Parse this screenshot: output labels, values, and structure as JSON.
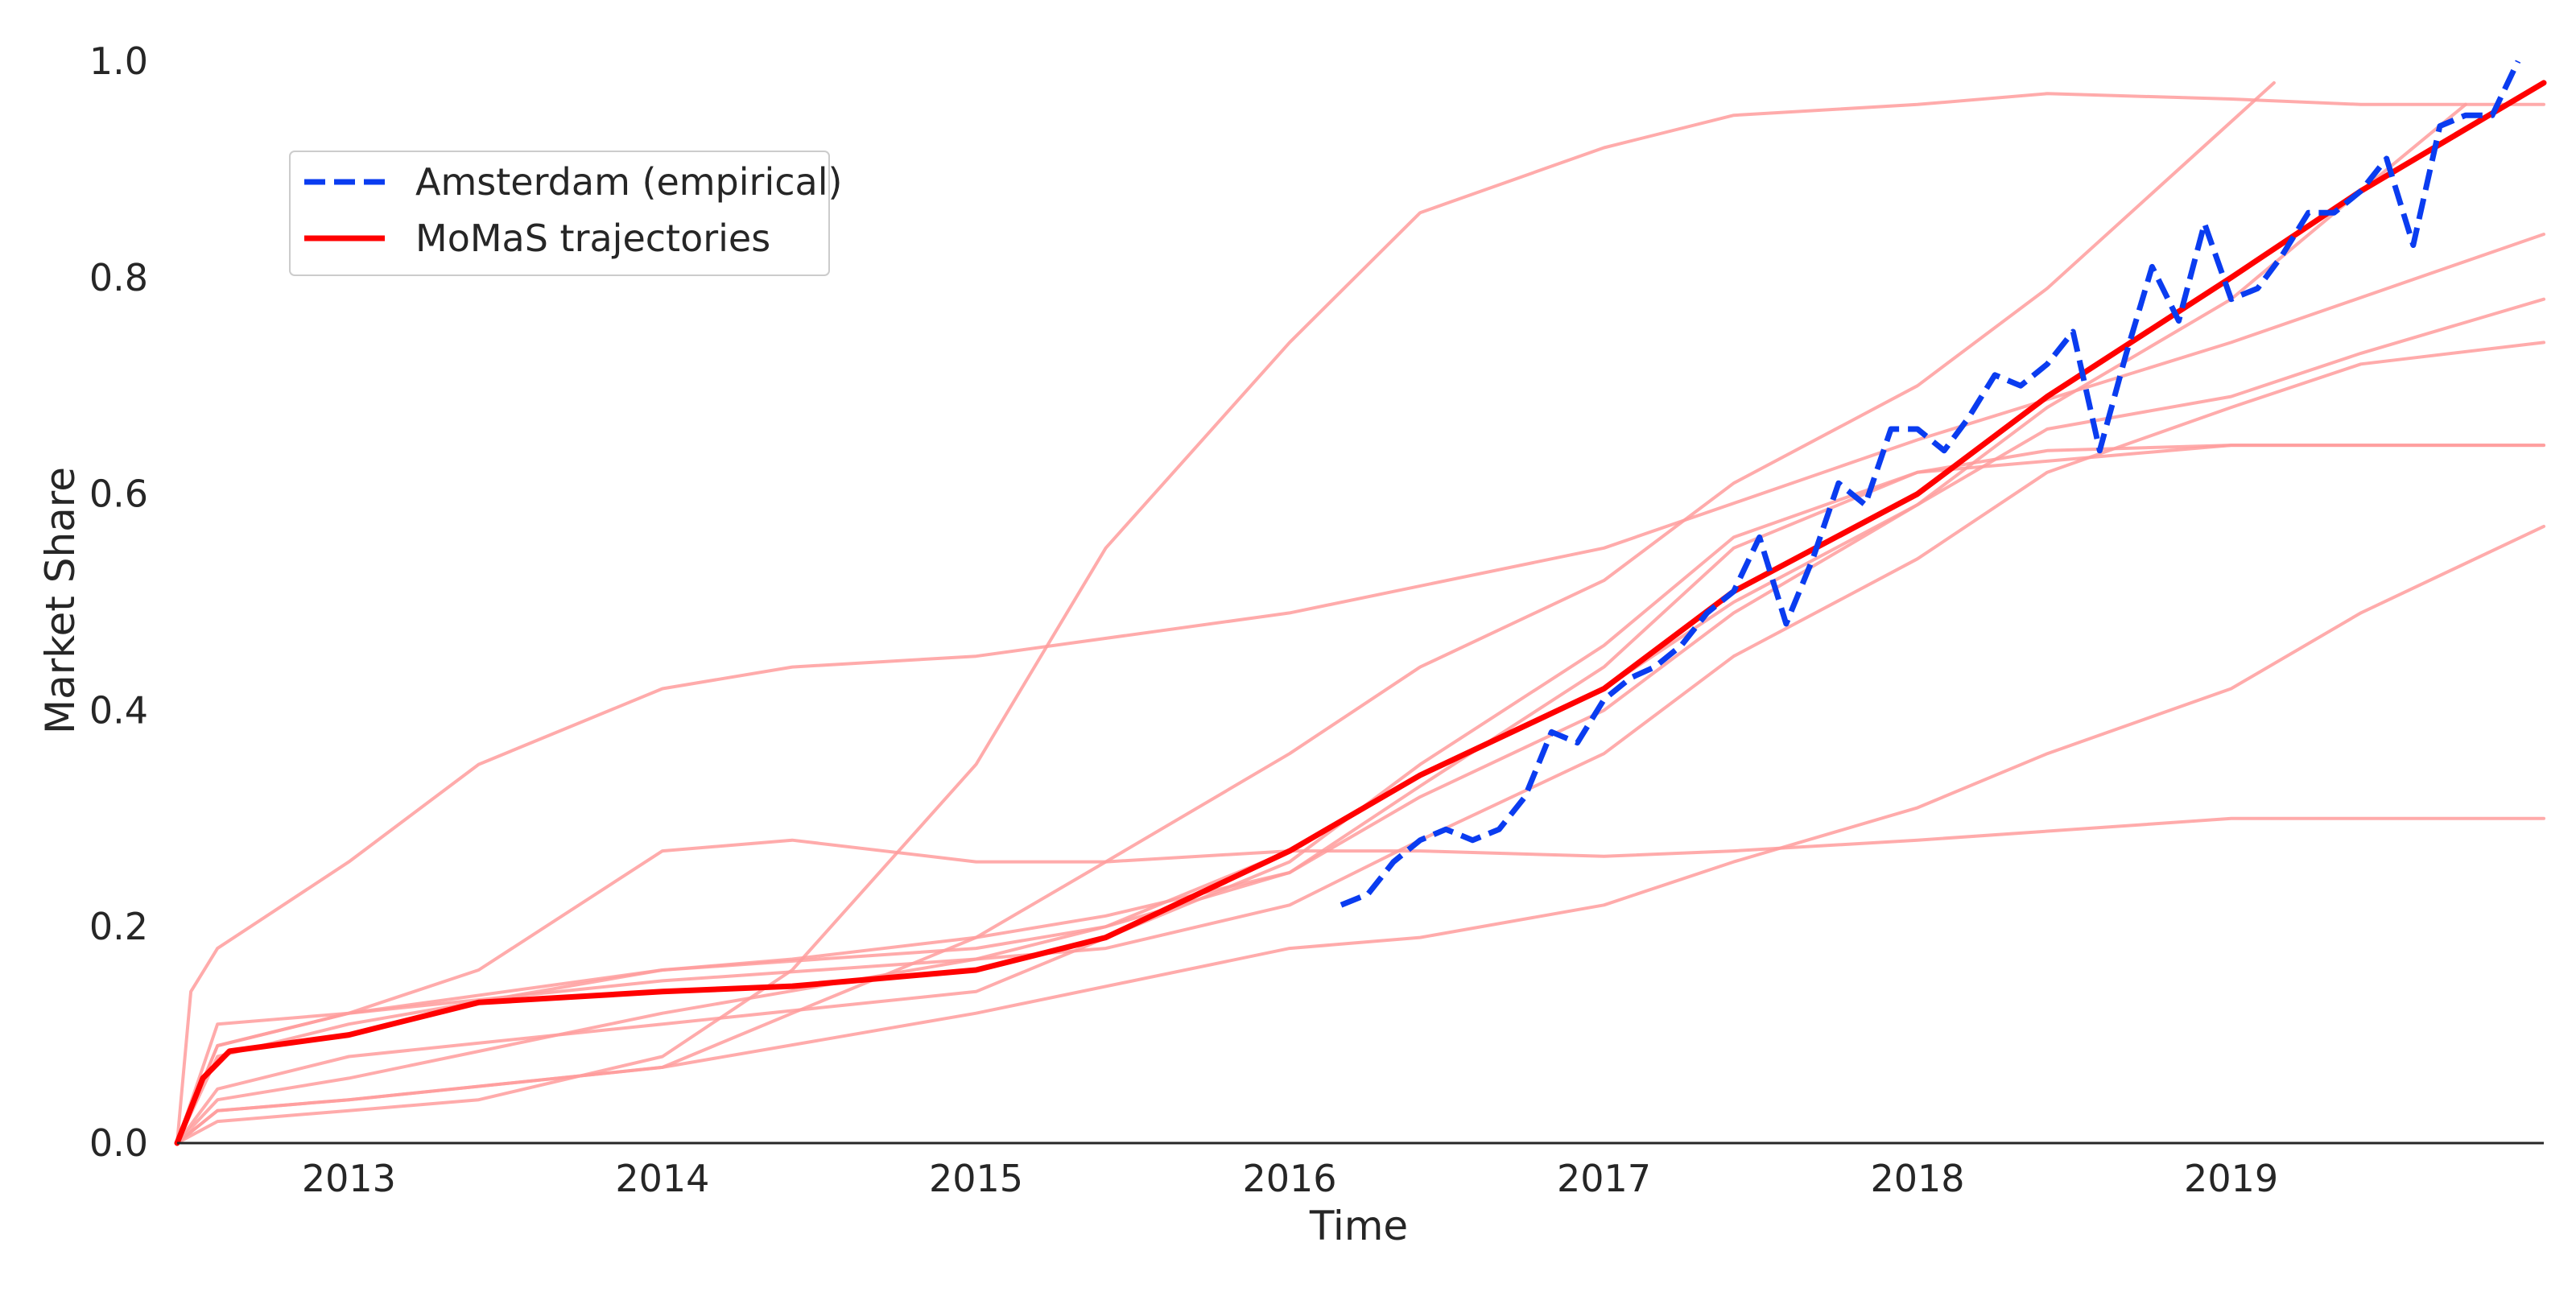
{
  "chart_data": {
    "type": "line",
    "xlabel": "Time",
    "ylabel": "Market Share",
    "xlim": [
      "2012-06-15",
      "2019-12-31"
    ],
    "ylim": [
      0.0,
      1.0
    ],
    "x_ticks": [
      "2013",
      "2014",
      "2015",
      "2016",
      "2017",
      "2018",
      "2019"
    ],
    "y_ticks": [
      "0.0",
      "0.2",
      "0.4",
      "0.6",
      "0.8",
      "1.0"
    ],
    "grid": false,
    "legend_position": "upper-left",
    "legend": [
      {
        "label": "Amsterdam (empirical)",
        "style": "dashed",
        "color": "#0a3cf0"
      },
      {
        "label": "MoMaS trajectories",
        "style": "solid",
        "color": "#ff0000"
      }
    ],
    "colors": {
      "empirical": "#0a3cf0",
      "mean": "#ff0000",
      "trajectory": "#ff9c9c"
    },
    "series": [
      {
        "name": "Amsterdam (empirical)",
        "style": "dashed",
        "x": [
          "2016-03-01",
          "2016-04-01",
          "2016-05-01",
          "2016-06-01",
          "2016-07-01",
          "2016-08-01",
          "2016-09-01",
          "2016-10-01",
          "2016-11-01",
          "2016-12-01",
          "2017-01-01",
          "2017-02-01",
          "2017-03-01",
          "2017-04-01",
          "2017-05-01",
          "2017-06-01",
          "2017-07-01",
          "2017-08-01",
          "2017-09-01",
          "2017-10-01",
          "2017-11-01",
          "2017-12-01",
          "2018-01-01",
          "2018-02-01",
          "2018-03-01",
          "2018-04-01",
          "2018-05-01",
          "2018-06-01",
          "2018-07-01",
          "2018-08-01",
          "2018-09-01",
          "2018-10-01",
          "2018-11-01",
          "2018-12-01",
          "2019-01-01",
          "2019-02-01",
          "2019-03-01",
          "2019-04-01",
          "2019-05-01",
          "2019-06-01",
          "2019-07-01",
          "2019-08-01",
          "2019-09-01",
          "2019-10-01",
          "2019-11-01",
          "2019-12-01"
        ],
        "values": [
          0.22,
          0.23,
          0.26,
          0.28,
          0.29,
          0.28,
          0.29,
          0.32,
          0.38,
          0.37,
          0.41,
          0.43,
          0.44,
          0.46,
          0.49,
          0.51,
          0.56,
          0.48,
          0.54,
          0.61,
          0.59,
          0.66,
          0.66,
          0.64,
          0.67,
          0.71,
          0.7,
          0.72,
          0.75,
          0.64,
          0.73,
          0.81,
          0.76,
          0.85,
          0.78,
          0.79,
          0.82,
          0.86,
          0.86,
          0.88,
          0.91,
          0.83,
          0.94,
          0.95,
          0.95,
          1.0
        ]
      },
      {
        "name": "MoMaS trajectories",
        "style": "solid-mean",
        "x": [
          "2012-06-15",
          "2012-07-15",
          "2012-08-15",
          "2013-01-01",
          "2013-06-01",
          "2014-01-01",
          "2014-06-01",
          "2015-01-01",
          "2015-06-01",
          "2016-01-01",
          "2016-06-01",
          "2017-01-01",
          "2017-06-01",
          "2018-01-01",
          "2018-06-01",
          "2019-01-01",
          "2019-06-01",
          "2019-12-31"
        ],
        "values": [
          0.0,
          0.06,
          0.085,
          0.1,
          0.13,
          0.14,
          0.145,
          0.16,
          0.19,
          0.27,
          0.34,
          0.42,
          0.51,
          0.6,
          0.69,
          0.8,
          0.88,
          0.98
        ]
      }
    ],
    "trajectories": [
      {
        "x": [
          "2012-06-15",
          "2012-07-01",
          "2012-08-01",
          "2013-01-01",
          "2013-06-01",
          "2014-01-01",
          "2014-06-01",
          "2015-01-01",
          "2016-01-01",
          "2017-01-01",
          "2018-01-01",
          "2019-01-01",
          "2019-12-31"
        ],
        "values": [
          0.0,
          0.14,
          0.18,
          0.26,
          0.35,
          0.42,
          0.44,
          0.45,
          0.49,
          0.55,
          0.65,
          0.74,
          0.84
        ]
      },
      {
        "x": [
          "2012-06-15",
          "2012-08-01",
          "2013-01-01",
          "2013-06-01",
          "2014-01-01",
          "2014-06-01",
          "2015-01-01",
          "2015-06-01",
          "2016-01-01",
          "2016-06-01",
          "2017-01-01",
          "2017-06-01",
          "2018-01-01",
          "2018-06-01",
          "2019-01-01",
          "2019-06-01",
          "2019-12-31"
        ],
        "values": [
          0.0,
          0.02,
          0.03,
          0.04,
          0.08,
          0.16,
          0.35,
          0.55,
          0.74,
          0.86,
          0.92,
          0.95,
          0.96,
          0.97,
          0.965,
          0.96,
          0.96
        ]
      },
      {
        "x": [
          "2012-06-15",
          "2012-08-01",
          "2013-01-01",
          "2013-06-01",
          "2014-01-01",
          "2014-06-01",
          "2015-01-01",
          "2015-06-01",
          "2016-01-01",
          "2016-06-01",
          "2017-01-01",
          "2017-06-01",
          "2018-01-01",
          "2019-01-01",
          "2019-12-31"
        ],
        "values": [
          0.0,
          0.09,
          0.12,
          0.16,
          0.27,
          0.28,
          0.26,
          0.26,
          0.27,
          0.27,
          0.265,
          0.27,
          0.28,
          0.3,
          0.3
        ]
      },
      {
        "x": [
          "2012-06-15",
          "2012-08-01",
          "2013-01-01",
          "2014-01-01",
          "2014-06-01",
          "2015-01-01",
          "2015-06-01",
          "2016-01-01",
          "2016-06-01",
          "2017-01-01",
          "2017-06-01",
          "2018-01-01",
          "2018-06-01",
          "2019-02-20"
        ],
        "values": [
          0.0,
          0.03,
          0.04,
          0.07,
          0.12,
          0.19,
          0.26,
          0.36,
          0.44,
          0.52,
          0.61,
          0.7,
          0.79,
          0.98
        ]
      },
      {
        "x": [
          "2012-06-15",
          "2012-08-01",
          "2013-01-01",
          "2014-01-01",
          "2014-06-01",
          "2015-01-01",
          "2015-06-01",
          "2016-01-01",
          "2016-06-01",
          "2017-01-01",
          "2017-06-01",
          "2018-01-01",
          "2019-01-01",
          "2019-12-31"
        ],
        "values": [
          0.0,
          0.11,
          0.12,
          0.16,
          0.17,
          0.19,
          0.21,
          0.25,
          0.33,
          0.44,
          0.55,
          0.62,
          0.645,
          0.645
        ]
      },
      {
        "x": [
          "2012-06-15",
          "2012-08-01",
          "2013-01-01",
          "2014-01-01",
          "2015-01-01",
          "2015-06-01",
          "2016-01-01",
          "2016-06-01",
          "2017-01-01",
          "2017-06-01",
          "2018-01-01",
          "2018-06-01",
          "2019-01-01",
          "2019-06-01",
          "2019-10-01"
        ],
        "values": [
          0.0,
          0.04,
          0.06,
          0.12,
          0.17,
          0.2,
          0.27,
          0.34,
          0.42,
          0.5,
          0.59,
          0.68,
          0.78,
          0.88,
          0.96
        ]
      },
      {
        "x": [
          "2012-06-15",
          "2012-08-01",
          "2013-01-01",
          "2014-01-01",
          "2015-01-01",
          "2015-06-01",
          "2016-01-01",
          "2016-06-01",
          "2017-01-01",
          "2017-06-01",
          "2018-01-01",
          "2018-06-01",
          "2019-01-01",
          "2019-06-01",
          "2019-12-31"
        ],
        "values": [
          0.0,
          0.08,
          0.11,
          0.16,
          0.18,
          0.2,
          0.25,
          0.32,
          0.4,
          0.49,
          0.59,
          0.66,
          0.69,
          0.73,
          0.78
        ]
      },
      {
        "x": [
          "2012-06-15",
          "2012-08-01",
          "2013-01-01",
          "2014-01-01",
          "2015-01-01",
          "2015-06-01",
          "2016-01-01",
          "2016-06-01",
          "2017-01-01",
          "2017-06-01",
          "2018-01-01",
          "2018-06-01",
          "2019-01-01",
          "2019-06-01",
          "2019-12-31"
        ],
        "values": [
          0.0,
          0.09,
          0.12,
          0.15,
          0.17,
          0.18,
          0.22,
          0.28,
          0.36,
          0.45,
          0.54,
          0.62,
          0.68,
          0.72,
          0.74
        ]
      },
      {
        "x": [
          "2012-06-15",
          "2012-08-01",
          "2013-01-01",
          "2014-01-01",
          "2015-01-01",
          "2016-01-01",
          "2016-06-01",
          "2017-01-01",
          "2017-06-01",
          "2018-01-01",
          "2018-06-01",
          "2019-01-01",
          "2019-06-01",
          "2019-12-31"
        ],
        "values": [
          0.0,
          0.03,
          0.04,
          0.07,
          0.12,
          0.18,
          0.19,
          0.22,
          0.26,
          0.31,
          0.36,
          0.42,
          0.49,
          0.57
        ]
      },
      {
        "x": [
          "2012-06-15",
          "2012-08-01",
          "2013-01-01",
          "2014-01-01",
          "2015-01-01",
          "2016-01-01",
          "2016-06-01",
          "2017-01-01",
          "2017-06-01",
          "2018-01-01",
          "2018-06-01",
          "2019-01-01",
          "2019-06-01",
          "2019-12-31"
        ],
        "values": [
          0.0,
          0.05,
          0.08,
          0.11,
          0.14,
          0.26,
          0.35,
          0.46,
          0.56,
          0.62,
          0.64,
          0.645,
          0.645,
          0.645
        ]
      }
    ]
  }
}
